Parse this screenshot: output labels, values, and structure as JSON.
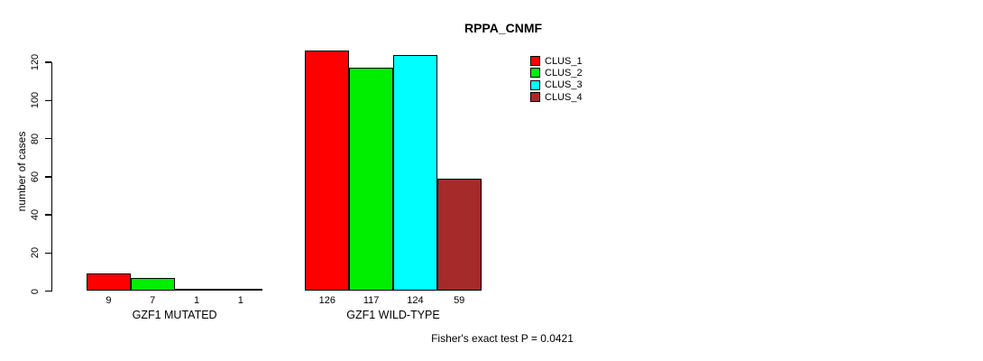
{
  "title": "RPPA_CNMF",
  "ylabel": "number of cases",
  "footer": "Fisher's exact test P = 0.0421",
  "legend": {
    "items": [
      {
        "label": "CLUS_1",
        "color": "#FF0000"
      },
      {
        "label": "CLUS_2",
        "color": "#00EE00"
      },
      {
        "label": "CLUS_3",
        "color": "#00FFFF"
      },
      {
        "label": "CLUS_4",
        "color": "#A52A2A"
      }
    ]
  },
  "chart_data": {
    "type": "bar",
    "title": "RPPA_CNMF",
    "xlabel": "",
    "ylabel": "number of cases",
    "ylim": [
      0,
      120
    ],
    "yticks": [
      0,
      20,
      40,
      60,
      80,
      100,
      120
    ],
    "grid": false,
    "legend_position": "top-right",
    "categories": [
      "GZF1 MUTATED",
      "GZF1 WILD-TYPE"
    ],
    "series": [
      {
        "name": "CLUS_1",
        "color": "#FF0000",
        "values": [
          9,
          126
        ]
      },
      {
        "name": "CLUS_2",
        "color": "#00EE00",
        "values": [
          7,
          117
        ]
      },
      {
        "name": "CLUS_3",
        "color": "#00FFFF",
        "values": [
          1,
          124
        ]
      },
      {
        "name": "CLUS_4",
        "color": "#A52A2A",
        "values": [
          1,
          59
        ]
      }
    ],
    "bar_labels": [
      [
        "9",
        "7",
        "1",
        "1"
      ],
      [
        "126",
        "117",
        "124",
        "59"
      ]
    ],
    "annotation": "Fisher's exact test P = 0.0421"
  }
}
